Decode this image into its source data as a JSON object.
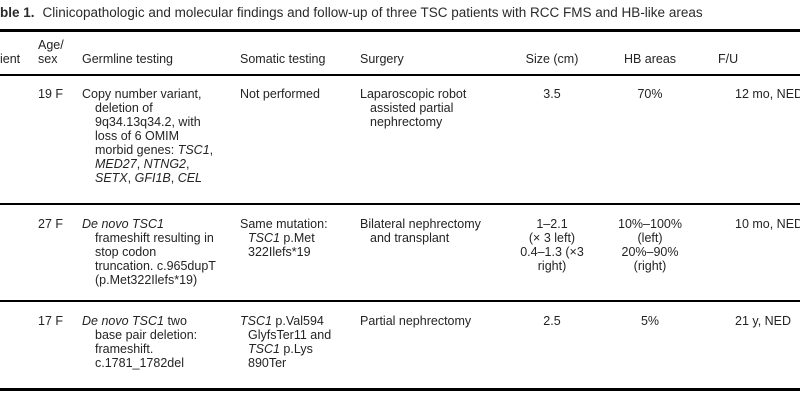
{
  "title": {
    "prefix": "ble 1.",
    "text": "Clinicopathologic and molecular findings and follow-up of three TSC patients with RCC FMS and HB-like areas"
  },
  "table": {
    "headers": {
      "patient": "ient",
      "age_sex_lines": [
        [
          {
            "t": "Age/"
          }
        ],
        [
          {
            "t": "sex"
          }
        ]
      ],
      "germline": "Germline testing",
      "somatic": "Somatic testing",
      "surgery": "Surgery",
      "size": "Size (cm)",
      "hb": "HB areas",
      "fu": "F/U"
    },
    "rows": [
      {
        "age_sex": "19 F",
        "germline": [
          [
            {
              "t": "Copy number variant,"
            }
          ],
          [
            {
              "t": "deletion of"
            }
          ],
          [
            {
              "t": "9q34.13q34.2, with"
            }
          ],
          [
            {
              "t": "loss of 6 OMIM"
            }
          ],
          [
            {
              "t": "morbid genes: "
            },
            {
              "t": "TSC1",
              "i": true
            },
            {
              "t": ","
            }
          ],
          [
            {
              "t": "MED27",
              "i": true
            },
            {
              "t": ", "
            },
            {
              "t": "NTNG2",
              "i": true
            },
            {
              "t": ","
            }
          ],
          [
            {
              "t": "SETX",
              "i": true
            },
            {
              "t": ", "
            },
            {
              "t": "GFI1B",
              "i": true
            },
            {
              "t": ", "
            },
            {
              "t": "CEL",
              "i": true
            }
          ]
        ],
        "somatic": [
          [
            {
              "t": "Not performed"
            }
          ]
        ],
        "surgery": [
          [
            {
              "t": "Laparoscopic robot"
            }
          ],
          [
            {
              "t": "assisted partial"
            }
          ],
          [
            {
              "t": "nephrectomy"
            }
          ]
        ],
        "size": [
          [
            {
              "t": "3.5"
            }
          ]
        ],
        "hb": [
          [
            {
              "t": "70%"
            }
          ]
        ],
        "fu": "12 mo, NED"
      },
      {
        "age_sex": "27 F",
        "germline": [
          [
            {
              "t": "De novo TSC1",
              "i": true
            }
          ],
          [
            {
              "t": "frameshift resulting in"
            }
          ],
          [
            {
              "t": "stop codon"
            }
          ],
          [
            {
              "t": "truncation. c.965dupT"
            }
          ],
          [
            {
              "t": "(p.Met322Ilefs*19)"
            }
          ]
        ],
        "somatic": [
          [
            {
              "t": "Same mutation:"
            }
          ],
          [
            {
              "t": "TSC1",
              "i": true
            },
            {
              "t": " p.Met"
            }
          ],
          [
            {
              "t": "322Ilefs*19"
            }
          ]
        ],
        "surgery": [
          [
            {
              "t": "Bilateral nephrectomy"
            }
          ],
          [
            {
              "t": "and transplant"
            }
          ]
        ],
        "size": [
          [
            {
              "t": "1–2.1"
            }
          ],
          [
            {
              "t": "(× 3 left)"
            }
          ],
          [
            {
              "t": "0.4–1.3 (×3"
            }
          ],
          [
            {
              "t": "right)"
            }
          ]
        ],
        "hb": [
          [
            {
              "t": "10%–100%"
            }
          ],
          [
            {
              "t": "(left)"
            }
          ],
          [
            {
              "t": "20%–90%"
            }
          ],
          [
            {
              "t": "(right)"
            }
          ]
        ],
        "fu": "10 mo, NED"
      },
      {
        "age_sex": "17 F",
        "germline": [
          [
            {
              "t": "De novo TSC1",
              "i": true
            },
            {
              "t": " two"
            }
          ],
          [
            {
              "t": "base pair deletion:"
            }
          ],
          [
            {
              "t": "frameshift."
            }
          ],
          [
            {
              "t": "c.1781_1782del"
            }
          ]
        ],
        "somatic": [
          [
            {
              "t": "TSC1",
              "i": true
            },
            {
              "t": " p.Val594"
            }
          ],
          [
            {
              "t": "GlyfsTer11 and"
            }
          ],
          [
            {
              "t": "TSC1",
              "i": true
            },
            {
              "t": " p.Lys"
            }
          ],
          [
            {
              "t": "890Ter"
            }
          ]
        ],
        "surgery": [
          [
            {
              "t": "Partial nephrectomy"
            }
          ]
        ],
        "size": [
          [
            {
              "t": "2.5"
            }
          ]
        ],
        "hb": [
          [
            {
              "t": "5%"
            }
          ]
        ],
        "fu": "21 y, NED"
      }
    ]
  }
}
